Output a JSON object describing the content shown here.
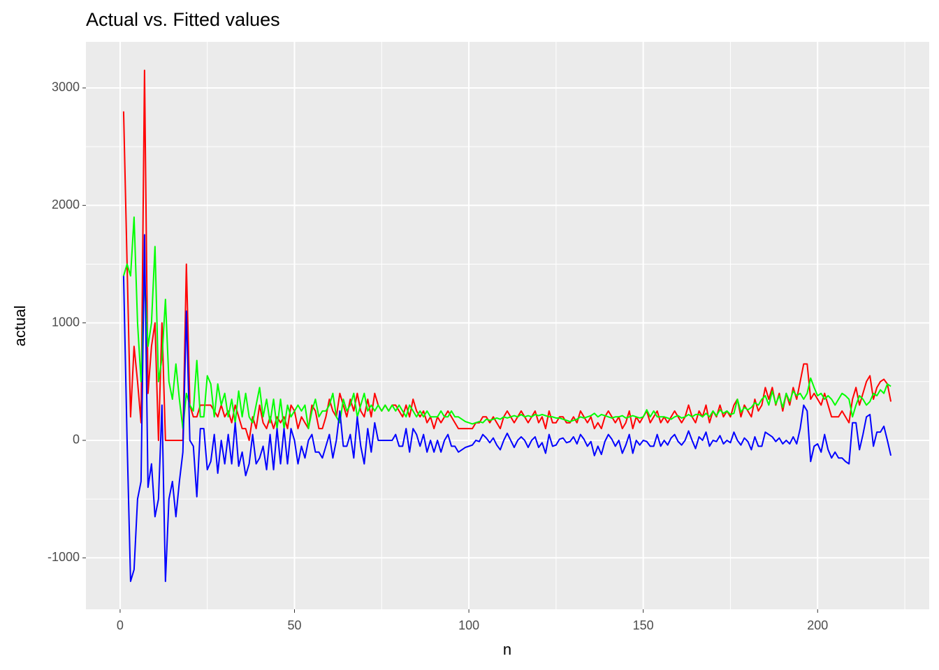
{
  "chart_data": {
    "type": "line",
    "title": "Actual vs. Fitted values",
    "x_label": "n",
    "y_label": "actual",
    "xlim": [
      -9.8,
      232
    ],
    "xticks": [
      0,
      50,
      100,
      150,
      200
    ],
    "ylim": [
      -1438,
      3392
    ],
    "yticks": [
      -1000,
      0,
      1000,
      2000,
      3000
    ],
    "grid": true,
    "x": [
      1,
      2,
      3,
      4,
      5,
      6,
      7,
      8,
      9,
      10,
      11,
      12,
      13,
      14,
      15,
      16,
      17,
      18,
      19,
      20,
      21,
      22,
      23,
      24,
      25,
      26,
      27,
      28,
      29,
      30,
      31,
      32,
      33,
      34,
      35,
      36,
      37,
      38,
      39,
      40,
      41,
      42,
      43,
      44,
      45,
      46,
      47,
      48,
      49,
      50,
      51,
      52,
      53,
      54,
      55,
      56,
      57,
      58,
      59,
      60,
      61,
      62,
      63,
      64,
      65,
      66,
      67,
      68,
      69,
      70,
      71,
      72,
      73,
      74,
      75,
      76,
      77,
      78,
      79,
      80,
      81,
      82,
      83,
      84,
      85,
      86,
      87,
      88,
      89,
      90,
      91,
      92,
      93,
      94,
      95,
      96,
      97,
      98,
      99,
      100,
      101,
      102,
      103,
      104,
      105,
      106,
      107,
      108,
      109,
      110,
      111,
      112,
      113,
      114,
      115,
      116,
      117,
      118,
      119,
      120,
      121,
      122,
      123,
      124,
      125,
      126,
      127,
      128,
      129,
      130,
      131,
      132,
      133,
      134,
      135,
      136,
      137,
      138,
      139,
      140,
      141,
      142,
      143,
      144,
      145,
      146,
      147,
      148,
      149,
      150,
      151,
      152,
      153,
      154,
      155,
      156,
      157,
      158,
      159,
      160,
      161,
      162,
      163,
      164,
      165,
      166,
      167,
      168,
      169,
      170,
      171,
      172,
      173,
      174,
      175,
      176,
      177,
      178,
      179,
      180,
      181,
      182,
      183,
      184,
      185,
      186,
      187,
      188,
      189,
      190,
      191,
      192,
      193,
      194,
      195,
      196,
      197,
      198,
      199,
      200,
      201,
      202,
      203,
      204,
      205,
      206,
      207,
      208,
      209,
      210,
      211,
      212,
      213,
      214,
      215,
      216,
      217,
      218,
      219,
      220,
      221
    ],
    "series": [
      {
        "color": "#ff0000",
        "values": [
          2800,
          1500,
          200,
          800,
          500,
          150,
          3150,
          400,
          800,
          1000,
          0,
          1000,
          0,
          0,
          0,
          0,
          0,
          0,
          1500,
          300,
          200,
          200,
          300,
          300,
          300,
          300,
          250,
          200,
          300,
          200,
          250,
          150,
          300,
          200,
          100,
          100,
          0,
          200,
          100,
          300,
          150,
          100,
          200,
          100,
          200,
          150,
          200,
          100,
          300,
          250,
          100,
          200,
          150,
          100,
          300,
          250,
          100,
          100,
          200,
          350,
          250,
          200,
          400,
          300,
          200,
          350,
          250,
          400,
          250,
          200,
          350,
          200,
          400,
          300,
          250,
          300,
          250,
          300,
          300,
          250,
          200,
          300,
          200,
          350,
          250,
          200,
          250,
          150,
          200,
          100,
          200,
          150,
          200,
          250,
          200,
          150,
          100,
          100,
          100,
          100,
          100,
          150,
          150,
          200,
          200,
          150,
          200,
          150,
          100,
          200,
          250,
          200,
          150,
          200,
          250,
          200,
          150,
          200,
          250,
          150,
          200,
          100,
          250,
          150,
          150,
          200,
          200,
          150,
          150,
          200,
          150,
          250,
          200,
          150,
          200,
          100,
          150,
          100,
          200,
          250,
          200,
          150,
          200,
          100,
          150,
          250,
          100,
          200,
          150,
          200,
          250,
          150,
          200,
          250,
          150,
          200,
          150,
          200,
          250,
          200,
          150,
          200,
          300,
          200,
          150,
          250,
          200,
          300,
          150,
          250,
          200,
          300,
          200,
          250,
          200,
          300,
          350,
          200,
          300,
          250,
          200,
          350,
          250,
          300,
          450,
          350,
          450,
          300,
          400,
          250,
          400,
          300,
          450,
          350,
          500,
          650,
          650,
          350,
          400,
          350,
          300,
          400,
          300,
          200,
          200,
          200,
          250,
          200,
          150,
          350,
          450,
          300,
          400,
          500,
          550,
          350,
          450,
          500,
          520,
          480,
          330
        ]
      },
      {
        "color": "#00ff00",
        "values": [
          1400,
          1500,
          1400,
          1900,
          1000,
          500,
          1400,
          800,
          1000,
          1650,
          500,
          700,
          1200,
          500,
          350,
          650,
          350,
          100,
          400,
          300,
          250,
          680,
          200,
          200,
          550,
          480,
          200,
          480,
          300,
          400,
          200,
          350,
          150,
          420,
          200,
          400,
          200,
          150,
          300,
          450,
          200,
          350,
          150,
          350,
          100,
          350,
          100,
          300,
          200,
          250,
          300,
          250,
          300,
          100,
          250,
          350,
          200,
          250,
          250,
          300,
          400,
          200,
          150,
          350,
          250,
          300,
          400,
          200,
          300,
          400,
          250,
          300,
          250,
          300,
          250,
          300,
          250,
          300,
          250,
          300,
          250,
          200,
          300,
          250,
          200,
          250,
          200,
          250,
          200,
          200,
          200,
          250,
          200,
          200,
          250,
          200,
          200,
          180,
          160,
          150,
          140,
          150,
          160,
          150,
          180,
          170,
          180,
          190,
          180,
          200,
          190,
          200,
          210,
          200,
          220,
          200,
          210,
          200,
          220,
          210,
          220,
          210,
          200,
          200,
          190,
          190,
          180,
          170,
          160,
          170,
          180,
          200,
          190,
          200,
          210,
          230,
          200,
          220,
          210,
          200,
          190,
          200,
          200,
          210,
          190,
          200,
          210,
          200,
          190,
          200,
          260,
          200,
          250,
          200,
          200,
          200,
          190,
          180,
          200,
          210,
          190,
          200,
          220,
          200,
          220,
          220,
          200,
          230,
          200,
          250,
          210,
          260,
          230,
          250,
          220,
          230,
          350,
          240,
          280,
          260,
          280,
          320,
          300,
          350,
          380,
          300,
          420,
          310,
          380,
          280,
          400,
          330,
          420,
          380,
          400,
          350,
          400,
          530,
          450,
          380,
          400,
          350,
          380,
          350,
          300,
          350,
          400,
          380,
          350,
          200,
          300,
          380,
          350,
          300,
          330,
          400,
          380,
          430,
          400,
          480,
          460
        ]
      },
      {
        "color": "#0000ff",
        "values": [
          1400,
          0,
          -1200,
          -1100,
          -500,
          -350,
          1750,
          -400,
          -200,
          -650,
          -500,
          300,
          -1200,
          -500,
          -350,
          -650,
          -350,
          -100,
          1100,
          0,
          -50,
          -480,
          100,
          100,
          -250,
          -180,
          50,
          -280,
          0,
          -200,
          50,
          -200,
          150,
          -220,
          -100,
          -300,
          -200,
          50,
          -200,
          -150,
          -50,
          -250,
          50,
          -250,
          100,
          -200,
          100,
          -200,
          100,
          0,
          -200,
          -50,
          -150,
          0,
          50,
          -100,
          -100,
          -150,
          -50,
          50,
          -150,
          0,
          250,
          -50,
          -50,
          50,
          -150,
          200,
          -50,
          -200,
          100,
          -100,
          150,
          0,
          0,
          0,
          0,
          0,
          50,
          -50,
          -50,
          100,
          -100,
          100,
          50,
          -50,
          50,
          -100,
          0,
          -100,
          0,
          -100,
          0,
          50,
          -50,
          -50,
          -100,
          -80,
          -60,
          -50,
          -40,
          0,
          -10,
          50,
          20,
          -20,
          20,
          -40,
          -80,
          0,
          60,
          0,
          -60,
          0,
          30,
          0,
          -60,
          0,
          30,
          -60,
          -20,
          -110,
          50,
          -50,
          -40,
          10,
          20,
          -20,
          -10,
          30,
          -30,
          50,
          10,
          -50,
          -10,
          -130,
          -50,
          -120,
          -10,
          50,
          10,
          -50,
          0,
          -110,
          -40,
          50,
          -110,
          0,
          -40,
          0,
          -10,
          -50,
          -50,
          50,
          -50,
          0,
          -40,
          20,
          50,
          -10,
          -40,
          0,
          80,
          0,
          -70,
          30,
          0,
          70,
          -50,
          0,
          -10,
          40,
          -30,
          0,
          -20,
          70,
          0,
          -40,
          20,
          -10,
          -80,
          30,
          -50,
          -50,
          70,
          50,
          30,
          -10,
          20,
          -30,
          0,
          -30,
          30,
          -30,
          100,
          300,
          250,
          -180,
          -50,
          -30,
          -100,
          50,
          -80,
          -150,
          -100,
          -150,
          -150,
          -180,
          -200,
          150,
          150,
          -80,
          50,
          200,
          220,
          -50,
          70,
          70,
          120,
          0,
          -130
        ]
      }
    ]
  }
}
